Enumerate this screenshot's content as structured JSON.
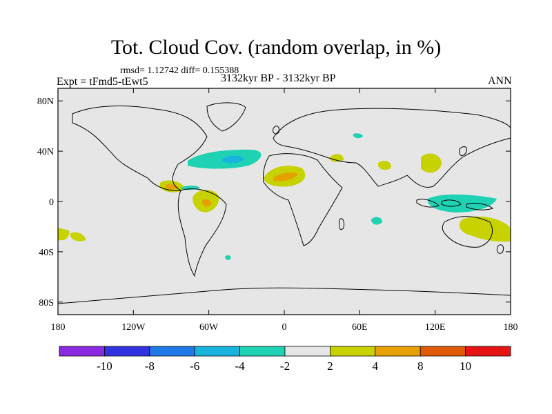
{
  "title": "Tot. Cloud Cov. (random overlap, in %)",
  "stats": "rmsd= 1.12742 diff= 0.155388",
  "experiment": "Expt = tFmd5-tEwt5",
  "period": "3132kyr BP - 3132kyr BP",
  "season": "ANN",
  "map": {
    "lon_range": [
      -180,
      180
    ],
    "lat_range": [
      -90,
      90
    ],
    "lon_ticks": [
      {
        "value": -180,
        "label": "180"
      },
      {
        "value": -120,
        "label": "120W"
      },
      {
        "value": -60,
        "label": "60W"
      },
      {
        "value": 0,
        "label": "0"
      },
      {
        "value": 60,
        "label": "60E"
      },
      {
        "value": 120,
        "label": "120E"
      },
      {
        "value": 180,
        "label": "180"
      }
    ],
    "lat_ticks": [
      {
        "value": 80,
        "label": "80N"
      },
      {
        "value": 40,
        "label": "40N"
      },
      {
        "value": 0,
        "label": "0"
      },
      {
        "value": -40,
        "label": "40S"
      },
      {
        "value": -80,
        "label": "80S"
      }
    ],
    "background_color": "#e6e6e6",
    "coastline_color": "#000000"
  },
  "colorbar": {
    "colors": [
      "#8a2be2",
      "#3232e0",
      "#1e78e6",
      "#18b4dc",
      "#20d2b4",
      "#e6e6e6",
      "#c8d200",
      "#e6a000",
      "#e05a00",
      "#e61414"
    ],
    "labels": [
      "-10",
      "-8",
      "-6",
      "-4",
      "-2",
      "2",
      "4",
      "8",
      "10"
    ]
  }
}
